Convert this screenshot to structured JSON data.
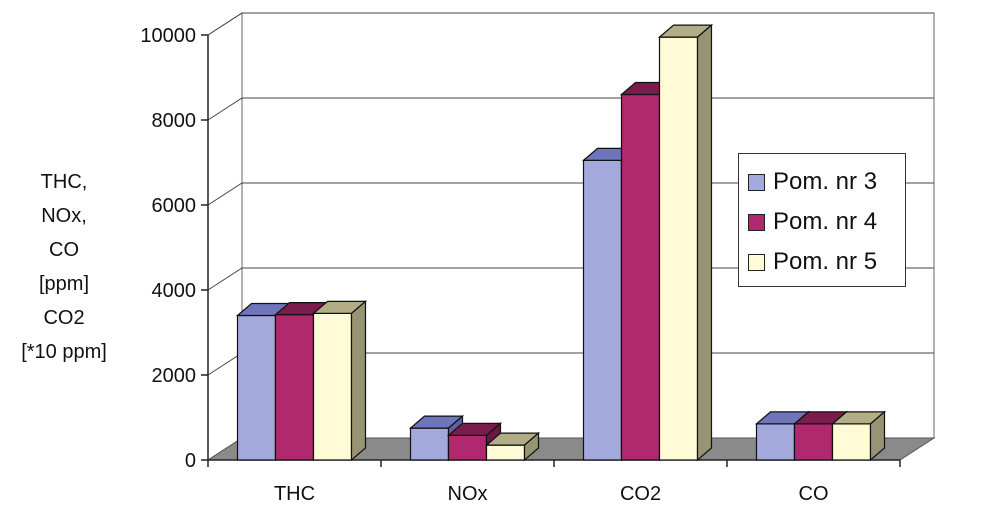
{
  "chart_data": {
    "type": "bar",
    "categories": [
      "THC",
      "NOx",
      "CO2",
      "CO"
    ],
    "series": [
      {
        "name": "Pom. nr 3",
        "values": [
          3400,
          750,
          7050,
          850
        ],
        "color": "#a3a9dc",
        "dark": "#6e75bb"
      },
      {
        "name": "Pom. nr 4",
        "values": [
          3420,
          580,
          8600,
          850
        ],
        "color": "#b0296e",
        "dark": "#7a1c4c"
      },
      {
        "name": "Pom. nr 5",
        "values": [
          3450,
          350,
          9950,
          850
        ],
        "color": "#fffbd6",
        "dark": "#b3ad86"
      }
    ],
    "ylabel_lines": [
      "THC,",
      "NOx,",
      "CO",
      "[ppm]",
      "CO2",
      "[*10 ppm]"
    ],
    "yticks": [
      "0",
      "2000",
      "4000",
      "6000",
      "8000",
      "10000"
    ],
    "ylim": [
      0,
      10000
    ],
    "grid": true,
    "legend_position": "right"
  }
}
